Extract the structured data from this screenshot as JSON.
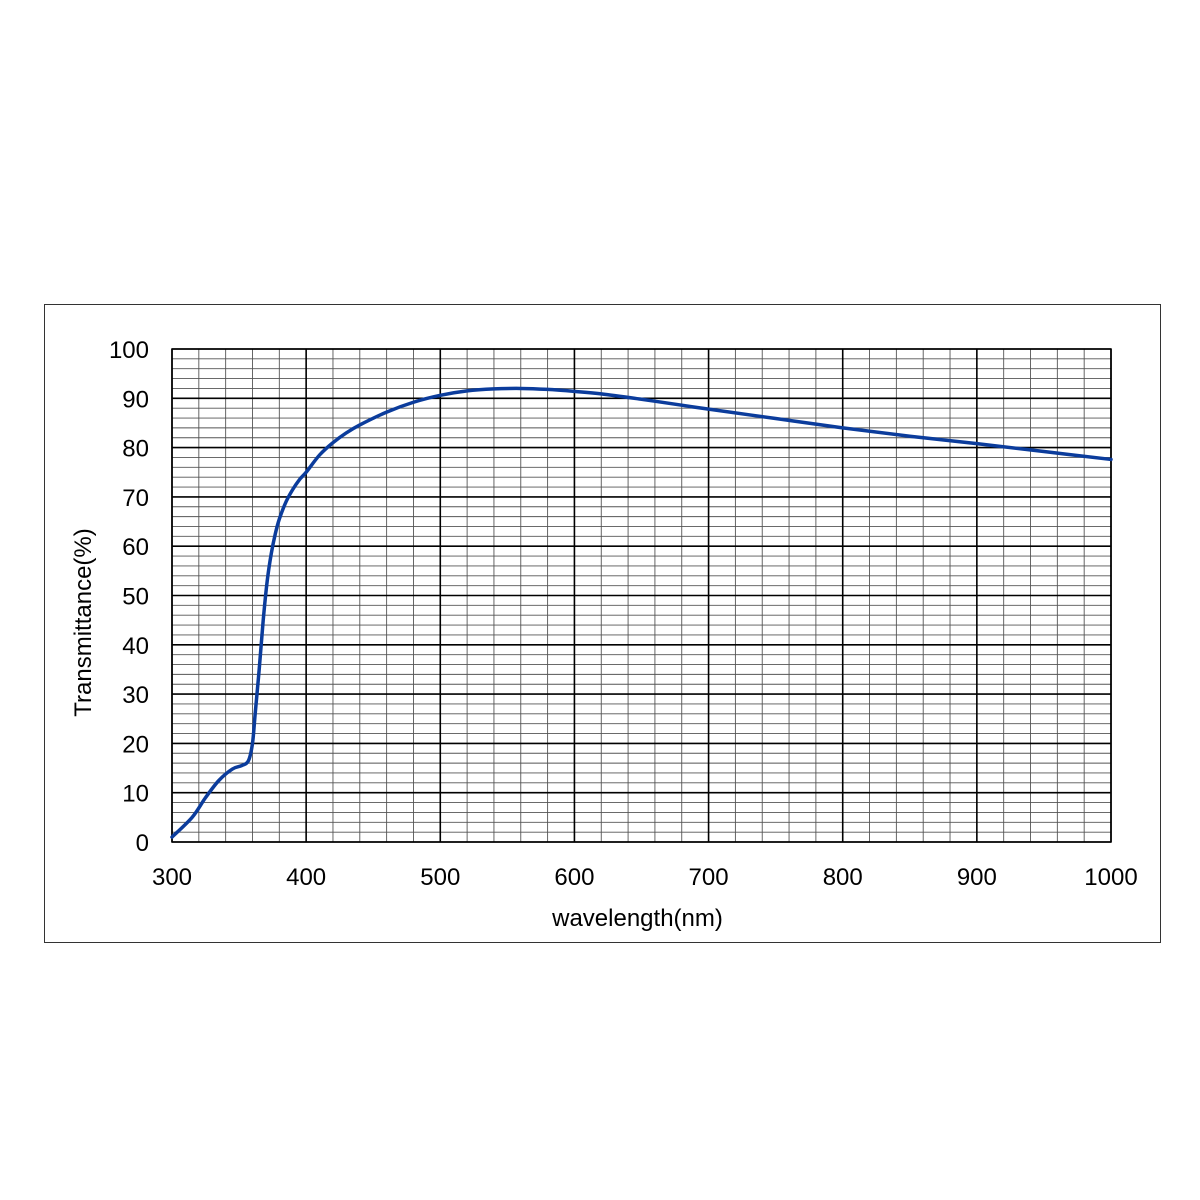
{
  "chart_data": {
    "type": "line",
    "xlabel": "wavelength(nm)",
    "ylabel": "Transmittance(%)",
    "xlim": [
      300,
      1000
    ],
    "ylim": [
      0,
      100
    ],
    "x_ticks": [
      300,
      400,
      500,
      600,
      700,
      800,
      900,
      1000
    ],
    "y_ticks": [
      0,
      10,
      20,
      30,
      40,
      50,
      60,
      70,
      80,
      90,
      100
    ],
    "x_tick_labels": [
      "300",
      "400",
      "500",
      "600",
      "700",
      "800",
      "900",
      "1000"
    ],
    "y_tick_labels": [
      "0",
      "10",
      "20",
      "30",
      "40",
      "50",
      "60",
      "70",
      "80",
      "90",
      "100"
    ],
    "grid": true,
    "minor_grid": {
      "x_step": 20,
      "y_step": 2
    },
    "series": [
      {
        "color": "#0b3c9c",
        "x": [
          300,
          315,
          325,
          335,
          345,
          352,
          357,
          360,
          362,
          365,
          368,
          371,
          374,
          377,
          380,
          385,
          390,
          395,
          400,
          410,
          420,
          430,
          440,
          460,
          480,
          500,
          520,
          540,
          560,
          580,
          600,
          620,
          650,
          680,
          700,
          750,
          800,
          850,
          900,
          950,
          1000
        ],
        "y": [
          1.0,
          5.0,
          9.0,
          12.5,
          14.8,
          15.5,
          16.5,
          20.0,
          26.0,
          35.0,
          45.0,
          53.0,
          58.5,
          62.5,
          65.5,
          69.0,
          71.5,
          73.5,
          75.0,
          78.5,
          81.0,
          83.0,
          84.6,
          87.2,
          89.2,
          90.6,
          91.5,
          91.9,
          92.0,
          91.8,
          91.4,
          90.9,
          89.8,
          88.6,
          87.8,
          85.9,
          84.0,
          82.3,
          80.8,
          79.2,
          77.6
        ]
      }
    ]
  }
}
